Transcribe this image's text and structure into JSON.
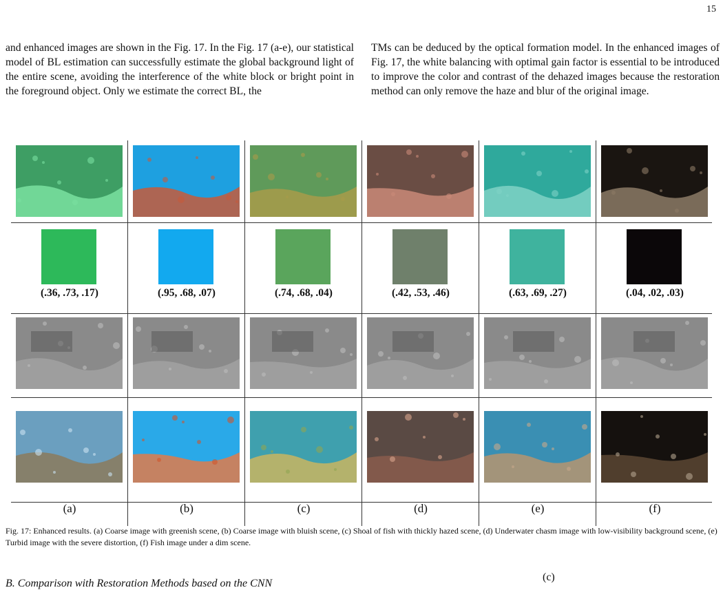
{
  "page_number": "15",
  "body": {
    "left_paragraph": "and enhanced images are shown in the Fig. 17. In the Fig. 17 (a-e), our statistical model of BL estimation can successfully estimate the global background light of the entire scene, avoiding the interference of the white block or bright point in the foreground object. Only we estimate the correct BL, the",
    "right_paragraph": "TMs can be deduced by the optical formation model. In the enhanced images of Fig. 17, the white balancing with optimal gain factor is essential to be introduced to improve the color and contrast of the dehazed images because the restoration method can only remove the haze and blur of the original image."
  },
  "figure": {
    "columns": [
      {
        "label": "(a)",
        "bl_value": "(.36, .73, .17)",
        "bl_color": "#2db95a",
        "raw": {
          "bg": "#3e9e64",
          "accent": "#7ae0a0"
        },
        "enh": {
          "bg": "#6b9fbf",
          "accent": "#c9e3f2",
          "floor": "#8b7a5c"
        }
      },
      {
        "label": "(b)",
        "bl_value": "(.95, .68, .07)",
        "bl_color": "#12a9ef",
        "raw": {
          "bg": "#1ea0e0",
          "accent": "#c75a3a"
        },
        "enh": {
          "bg": "#2aa9e8",
          "accent": "#d0552b",
          "floor": "#e07b4a"
        }
      },
      {
        "label": "(c)",
        "bl_value": "(.74, .68, .04)",
        "bl_color": "#5aa55c",
        "raw": {
          "bg": "#5f9a5a",
          "accent": "#a89b4a"
        },
        "enh": {
          "bg": "#3fa0ae",
          "accent": "#8fa552",
          "floor": "#c9b560"
        }
      },
      {
        "label": "(d)",
        "bl_value": "(.42, .53, .46)",
        "bl_color": "#6f806b",
        "raw": {
          "bg": "#6a4d44",
          "accent": "#c98a78"
        },
        "enh": {
          "bg": "#5a4a44",
          "accent": "#d9a58c",
          "floor": "#8a5c4c"
        }
      },
      {
        "label": "(e)",
        "bl_value": "(.63, .69, .27)",
        "bl_color": "#3fb39e",
        "raw": {
          "bg": "#2fa99c",
          "accent": "#7fd2c6"
        },
        "enh": {
          "bg": "#3a8fb3",
          "accent": "#c7a98a",
          "floor": "#b69570"
        }
      },
      {
        "label": "(f)",
        "bl_value": "(.04, .02, .03)",
        "bl_color": "#0b0709",
        "raw": {
          "bg": "#1a1511",
          "accent": "#8c7a66"
        },
        "enh": {
          "bg": "#15110e",
          "accent": "#b3a38e",
          "floor": "#5a4632"
        }
      }
    ],
    "caption": "Fig. 17: Enhanced results. (a) Coarse image with greenish scene, (b) Coarse image with bluish scene, (c) Shoal of fish with thickly hazed scene, (d) Underwater chasm image with low-visibility background scene, (e) Turbid image with the severe distortion, (f) Fish image under a dim scene."
  },
  "section_heading": "B. Comparison with Restoration Methods based on the CNN",
  "stray_label": "(c)"
}
